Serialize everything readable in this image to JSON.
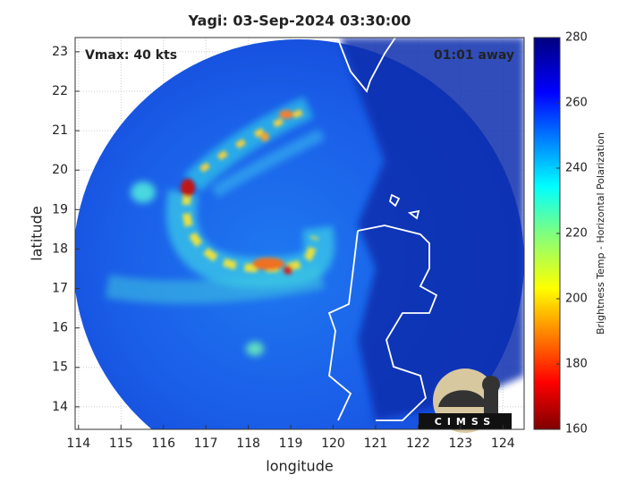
{
  "chart_data": {
    "type": "map",
    "title": "Yagi: 03-Sep-2024 03:30:00",
    "xlabel": "longitude",
    "ylabel": "latitude",
    "xlim": [
      113.92,
      124.5
    ],
    "ylim": [
      13.43,
      23.36
    ],
    "xticks": [
      114,
      115,
      116,
      117,
      118,
      119,
      120,
      121,
      122,
      123,
      124
    ],
    "yticks": [
      14,
      15,
      16,
      17,
      18,
      19,
      20,
      21,
      22,
      23
    ],
    "grid": true,
    "colorbar": {
      "label": "Brightness Temp - Horizontal Polarization",
      "lim": [
        160,
        280
      ],
      "ticks": [
        160,
        180,
        200,
        220,
        240,
        260,
        280
      ]
    },
    "annotations": [
      "Vmax: 40 kts",
      "01:01 away"
    ],
    "logo": "CIMSS"
  }
}
